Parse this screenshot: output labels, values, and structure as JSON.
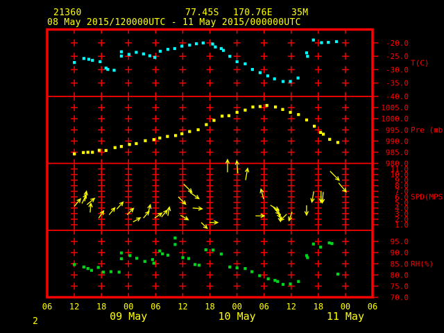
{
  "header": {
    "station_id": "21360",
    "latitude": "77.45S",
    "longitude": "170.76E",
    "elevation": "35M",
    "time_range": "08 May 2015/120000UTC - 11 May 2015/000000UTC"
  },
  "page_number": "2",
  "colors": {
    "background": "#000000",
    "grid": "#ff0000",
    "axis_text": "#ff0000",
    "label_text": "#ffff00",
    "temperature": "#00ffff",
    "pressure": "#ffff00",
    "wind": "#ffff00",
    "humidity": "#00d41c"
  },
  "chart_data": {
    "type": "meteogram",
    "x_axis": {
      "range_hours": [
        0,
        72
      ],
      "tick_interval_hours": 6,
      "hour_labels": [
        "06",
        "12",
        "18",
        "00",
        "06",
        "12",
        "18",
        "00",
        "06",
        "12",
        "18",
        "00",
        "06"
      ],
      "date_labels": [
        {
          "hour": 18,
          "label": "09 May"
        },
        {
          "hour": 42,
          "label": "10 May"
        },
        {
          "hour": 66,
          "label": "11 May"
        }
      ]
    },
    "panels": [
      {
        "id": "temperature",
        "unit_label": "T(C)",
        "type": "scatter",
        "color_key": "temperature",
        "value_top": -15,
        "value_bottom": -40,
        "tick_values": [
          -20,
          -25,
          -30,
          -35,
          -40
        ],
        "tick_labels": [
          "-20.0",
          "-25.0",
          "-30.0",
          "-35.0",
          "-40.0"
        ],
        "points": [
          [
            6.0,
            -27.3
          ],
          [
            8.1,
            -25.8
          ],
          [
            9.2,
            -26.1
          ],
          [
            10.0,
            -26.5
          ],
          [
            11.7,
            -27.0
          ],
          [
            13.0,
            -29.4
          ],
          [
            13.4,
            -29.9
          ],
          [
            14.8,
            -30.2
          ],
          [
            16.4,
            -23.3
          ],
          [
            16.4,
            -24.9
          ],
          [
            18.1,
            -24.3
          ],
          [
            19.7,
            -23.5
          ],
          [
            21.3,
            -24.1
          ],
          [
            22.7,
            -24.8
          ],
          [
            23.8,
            -25.4
          ],
          [
            25.0,
            -23.1
          ],
          [
            26.7,
            -22.4
          ],
          [
            28.2,
            -22.1
          ],
          [
            29.8,
            -21.2
          ],
          [
            31.5,
            -20.8
          ],
          [
            33.0,
            -20.3
          ],
          [
            34.5,
            -20.0
          ],
          [
            36.6,
            -20.4
          ],
          [
            37.2,
            -21.5
          ],
          [
            38.5,
            -22.1
          ],
          [
            39.0,
            -22.8
          ],
          [
            40.4,
            -25.0
          ],
          [
            42.0,
            -27.0
          ],
          [
            43.8,
            -27.8
          ],
          [
            45.4,
            -29.9
          ],
          [
            47.1,
            -31.1
          ],
          [
            48.8,
            -32.3
          ],
          [
            50.3,
            -33.4
          ],
          [
            52.2,
            -34.4
          ],
          [
            53.8,
            -34.4
          ],
          [
            55.5,
            -33.1
          ],
          [
            57.4,
            -23.7
          ],
          [
            57.6,
            -25.0
          ],
          [
            58.9,
            -18.9
          ],
          [
            60.7,
            -19.9
          ],
          [
            62.2,
            -19.8
          ],
          [
            64.0,
            -19.5
          ]
        ]
      },
      {
        "id": "pressure",
        "unit_label": "Pre (mb)",
        "type": "scatter",
        "color_key": "pressure",
        "value_top": 1010,
        "value_bottom": 980,
        "tick_values": [
          1005,
          1000,
          995,
          990,
          985,
          980
        ],
        "tick_labels": [
          "1005.0",
          "1000.0",
          "995.0",
          "990.0",
          "985.0",
          "980.0"
        ],
        "points": [
          [
            6.0,
            984.3
          ],
          [
            8.0,
            984.9
          ],
          [
            9.0,
            985.0
          ],
          [
            10.0,
            985.0
          ],
          [
            11.5,
            985.9
          ],
          [
            13.0,
            985.8
          ],
          [
            15.0,
            987.1
          ],
          [
            16.4,
            987.6
          ],
          [
            18.2,
            988.5
          ],
          [
            19.7,
            988.9
          ],
          [
            21.7,
            990.2
          ],
          [
            23.6,
            990.7
          ],
          [
            24.9,
            991.4
          ],
          [
            26.6,
            992.1
          ],
          [
            28.4,
            992.5
          ],
          [
            29.8,
            993.3
          ],
          [
            31.5,
            994.3
          ],
          [
            33.4,
            995.1
          ],
          [
            35.2,
            997.4
          ],
          [
            36.9,
            999.3
          ],
          [
            38.7,
            1001.2
          ],
          [
            40.2,
            1001.4
          ],
          [
            42.0,
            1002.9
          ],
          [
            43.8,
            1003.9
          ],
          [
            45.5,
            1005.3
          ],
          [
            47.1,
            1005.5
          ],
          [
            48.6,
            1006.0
          ],
          [
            50.5,
            1005.3
          ],
          [
            52.1,
            1004.2
          ],
          [
            53.8,
            1002.9
          ],
          [
            55.6,
            1001.9
          ],
          [
            57.4,
            999.5
          ],
          [
            59.1,
            996.7
          ],
          [
            60.5,
            993.9
          ],
          [
            61.1,
            993.1
          ],
          [
            62.5,
            990.8
          ],
          [
            64.3,
            989.4
          ]
        ]
      },
      {
        "id": "wind_speed",
        "unit_label": "SPD(MPS)",
        "type": "wind_arrows",
        "color_key": "wind",
        "value_top": 12,
        "value_bottom": 0,
        "tick_values": [
          11,
          10,
          9,
          8,
          7,
          6,
          5,
          4,
          3,
          2,
          1
        ],
        "tick_labels": [
          "11.0",
          "10.0",
          "9.0",
          "8.0",
          "7.0",
          "6.0",
          "5.0",
          "4.0",
          "3.0",
          "2.0",
          "1.0"
        ],
        "arrows": [
          [
            6.0,
            4.3,
            40
          ],
          [
            7.7,
            4.8,
            25
          ],
          [
            8.3,
            5.2,
            10
          ],
          [
            8.8,
            4.6,
            50
          ],
          [
            9.5,
            3.2,
            5
          ],
          [
            11.4,
            2.2,
            35
          ],
          [
            13.7,
            2.8,
            40
          ],
          [
            15.4,
            3.8,
            42
          ],
          [
            17.7,
            2.8,
            45
          ],
          [
            19.0,
            1.5,
            60
          ],
          [
            21.3,
            2.2,
            40
          ],
          [
            22.3,
            3.0,
            15
          ],
          [
            23.8,
            2.2,
            55
          ],
          [
            25.3,
            2.4,
            40
          ],
          [
            26.7,
            2.6,
            10
          ],
          [
            29.0,
            6.0,
            135
          ],
          [
            29.5,
            2.7,
            120
          ],
          [
            30.2,
            8.3,
            135
          ],
          [
            31.6,
            6.8,
            125
          ],
          [
            32.2,
            4.0,
            95
          ],
          [
            34.1,
            1.4,
            135
          ],
          [
            35.9,
            1.4,
            90
          ],
          [
            39.9,
            10.4,
            0
          ],
          [
            42.2,
            10.2,
            355
          ],
          [
            43.9,
            9.0,
            10
          ],
          [
            46.1,
            2.6,
            90
          ],
          [
            47.9,
            5.6,
            345
          ],
          [
            49.4,
            4.5,
            120
          ],
          [
            50.0,
            4.2,
            140
          ],
          [
            50.7,
            3.8,
            155
          ],
          [
            51.3,
            3.2,
            170
          ],
          [
            53.0,
            2.9,
            225
          ],
          [
            54.2,
            3.3,
            200
          ],
          [
            57.4,
            4.5,
            180
          ],
          [
            59.0,
            7.0,
            190
          ],
          [
            60.6,
            7.0,
            180
          ],
          [
            61.1,
            6.9,
            185
          ],
          [
            62.6,
            10.6,
            135
          ],
          [
            64.5,
            8.5,
            140
          ]
        ]
      },
      {
        "id": "relative_humidity",
        "unit_label": "RH(%)",
        "type": "scatter",
        "color_key": "humidity",
        "value_top": 100,
        "value_bottom": 70,
        "tick_values": [
          95,
          90,
          85,
          80,
          75,
          70
        ],
        "tick_labels": [
          "95.0",
          "90.0",
          "85.0",
          "80.0",
          "75.0",
          "70.0"
        ],
        "points": [
          [
            6.0,
            84.7
          ],
          [
            8.1,
            83.6
          ],
          [
            9.0,
            82.9
          ],
          [
            9.8,
            82.1
          ],
          [
            11.3,
            83.4
          ],
          [
            12.4,
            81.3
          ],
          [
            14.1,
            81.5
          ],
          [
            15.9,
            81.3
          ],
          [
            16.4,
            89.9
          ],
          [
            16.4,
            87.3
          ],
          [
            18.3,
            88.7
          ],
          [
            19.8,
            87.5
          ],
          [
            21.6,
            86.1
          ],
          [
            23.3,
            86.9
          ],
          [
            23.6,
            85.3
          ],
          [
            24.9,
            90.8
          ],
          [
            25.5,
            89.5
          ],
          [
            26.7,
            88.9
          ],
          [
            28.3,
            96.6
          ],
          [
            28.3,
            93.7
          ],
          [
            30.0,
            87.8
          ],
          [
            31.3,
            87.4
          ],
          [
            32.7,
            84.7
          ],
          [
            33.6,
            84.4
          ],
          [
            35.1,
            91.3
          ],
          [
            36.7,
            91.2
          ],
          [
            38.5,
            89.4
          ],
          [
            40.4,
            83.6
          ],
          [
            42.0,
            83.2
          ],
          [
            43.8,
            82.9
          ],
          [
            45.3,
            81.5
          ],
          [
            47.0,
            79.7
          ],
          [
            48.9,
            78.3
          ],
          [
            50.4,
            77.6
          ],
          [
            51.0,
            77.1
          ],
          [
            52.2,
            75.8
          ],
          [
            53.8,
            76.0
          ],
          [
            55.6,
            77.1
          ],
          [
            57.4,
            88.7
          ],
          [
            57.6,
            87.8
          ],
          [
            58.9,
            93.9
          ],
          [
            60.5,
            92.5
          ],
          [
            62.4,
            94.4
          ],
          [
            63.0,
            94.1
          ],
          [
            64.3,
            80.4
          ]
        ]
      }
    ]
  }
}
